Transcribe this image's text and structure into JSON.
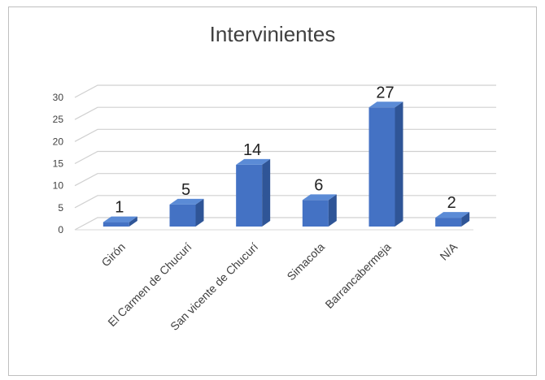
{
  "chart_data": {
    "type": "bar",
    "title": "Intervinientes",
    "categories": [
      "Girón",
      "El Carmen de Chucurí",
      "San vicente de Chucurí",
      "Simacota",
      "Barrancabermeja",
      "N/A"
    ],
    "values": [
      1,
      5,
      14,
      6,
      27,
      2
    ],
    "ylim": [
      0,
      30
    ],
    "yticks": [
      0,
      5,
      10,
      15,
      20,
      25,
      30
    ],
    "grid": true,
    "style": "3d-column",
    "bar_color": "#4472c4"
  }
}
